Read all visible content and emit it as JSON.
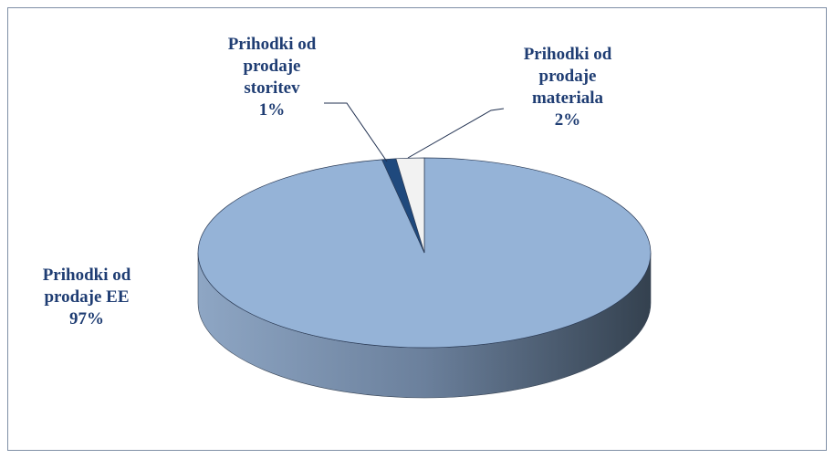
{
  "chart_data": {
    "type": "pie3d",
    "categories": [
      "Prihodki od prodaje EE",
      "Prihodki od prodaje storitev",
      "Prihodki od prodaje materiala"
    ],
    "values": [
      97,
      1,
      2
    ],
    "value_labels": [
      "97%",
      "1%",
      "2%"
    ],
    "colors": [
      "#95b3d7",
      "#1f497d",
      "#f2f2f2"
    ]
  }
}
